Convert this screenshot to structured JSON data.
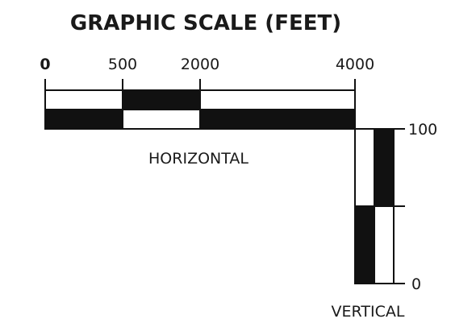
{
  "title": "GRAPHIC SCALE (FEET)",
  "horizontal": {
    "label": "HORIZONTAL",
    "ticks": [
      "0",
      "500",
      "2000",
      "4000"
    ]
  },
  "vertical": {
    "label": "VERTICAL",
    "ticks": [
      "100",
      "0"
    ]
  }
}
